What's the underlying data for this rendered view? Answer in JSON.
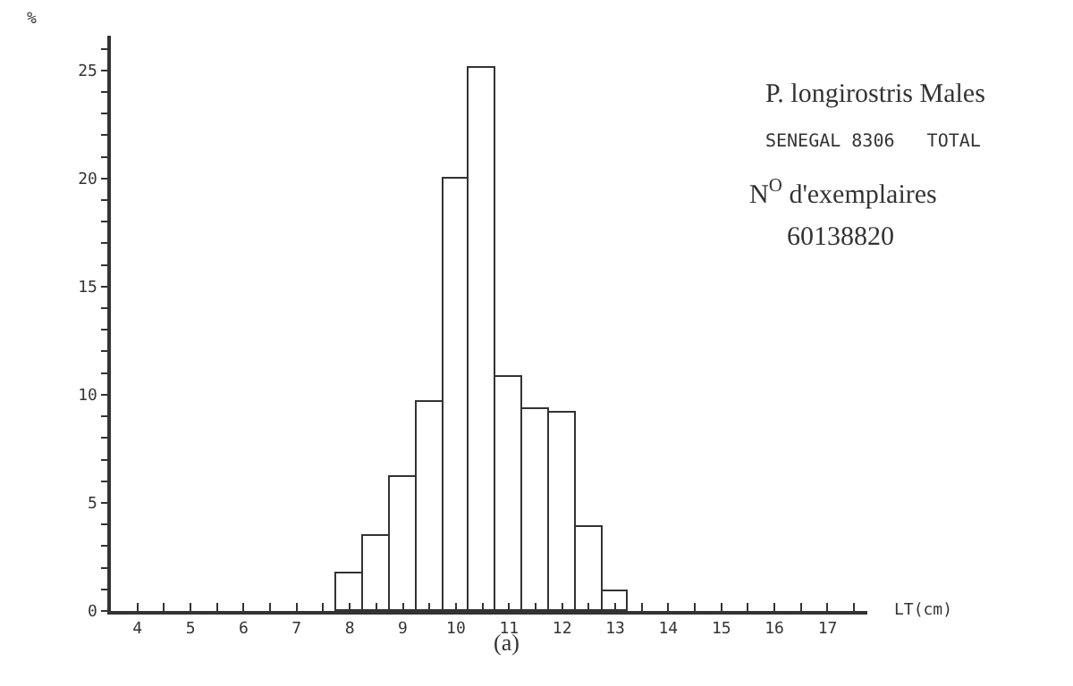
{
  "chart_data": {
    "type": "histogram",
    "bins": [
      7.75,
      8.25,
      8.75,
      9.25,
      9.75,
      10.25,
      10.75,
      11.25,
      11.75,
      12.25,
      12.75,
      13.25
    ],
    "values": [
      1.7,
      3.5,
      6.2,
      9.7,
      20,
      25.1,
      10.8,
      9.3,
      9.2,
      3.9,
      0.9
    ],
    "color": "#ffffff",
    "xlabel": "LT(cm)",
    "ylabel": "%",
    "xlim": [
      3.5,
      17.75
    ],
    "ylim": [
      0,
      26.6
    ],
    "xticks": [
      {
        "value": 3.5,
        "label": null
      },
      4,
      {
        "value": 4.5,
        "label": null
      },
      5,
      {
        "value": 5.5,
        "label": null
      },
      6,
      {
        "value": 6.5,
        "label": null
      },
      7,
      {
        "value": 7.5,
        "label": null
      },
      8,
      {
        "value": 8.5,
        "label": null
      },
      9,
      {
        "value": 9.5,
        "label": null
      },
      10,
      {
        "value": 10.5,
        "label": null
      },
      11,
      {
        "value": 11.5,
        "label": null
      },
      12,
      {
        "value": 12.5,
        "label": null
      },
      13,
      {
        "value": 13.5,
        "label": null
      },
      14,
      {
        "value": 14.5,
        "label": null
      },
      15,
      {
        "value": 15.5,
        "label": null
      },
      16,
      {
        "value": 16.5,
        "label": null
      },
      17,
      {
        "value": 17.5,
        "label": null
      }
    ],
    "yticks": [
      0,
      {
        "value": 1,
        "label": null
      },
      {
        "value": 2,
        "label": null
      },
      {
        "value": 3,
        "label": null
      },
      {
        "value": 4,
        "label": null
      },
      5,
      {
        "value": 6,
        "label": null
      },
      {
        "value": 7,
        "label": null
      },
      {
        "value": 8,
        "label": null
      },
      {
        "value": 9,
        "label": null
      },
      10,
      {
        "value": 11,
        "label": null
      },
      {
        "value": 12,
        "label": null
      },
      {
        "value": 13,
        "label": null
      },
      {
        "value": 14,
        "label": null
      },
      15,
      {
        "value": 16,
        "label": null
      },
      {
        "value": 17,
        "label": null
      },
      {
        "value": 18,
        "label": null
      },
      {
        "value": 19,
        "label": null
      },
      20,
      {
        "value": 21,
        "label": null
      },
      {
        "value": 22,
        "label": null
      },
      {
        "value": 23,
        "label": null
      },
      {
        "value": 24,
        "label": null
      },
      25,
      {
        "value": 26,
        "label": null
      }
    ],
    "annotations": [
      "P. longirostris Males",
      "SENEGAL 8306   TOTAL",
      "N$^{O}$ d'exemplaires",
      "60138820",
      "(a)"
    ]
  }
}
